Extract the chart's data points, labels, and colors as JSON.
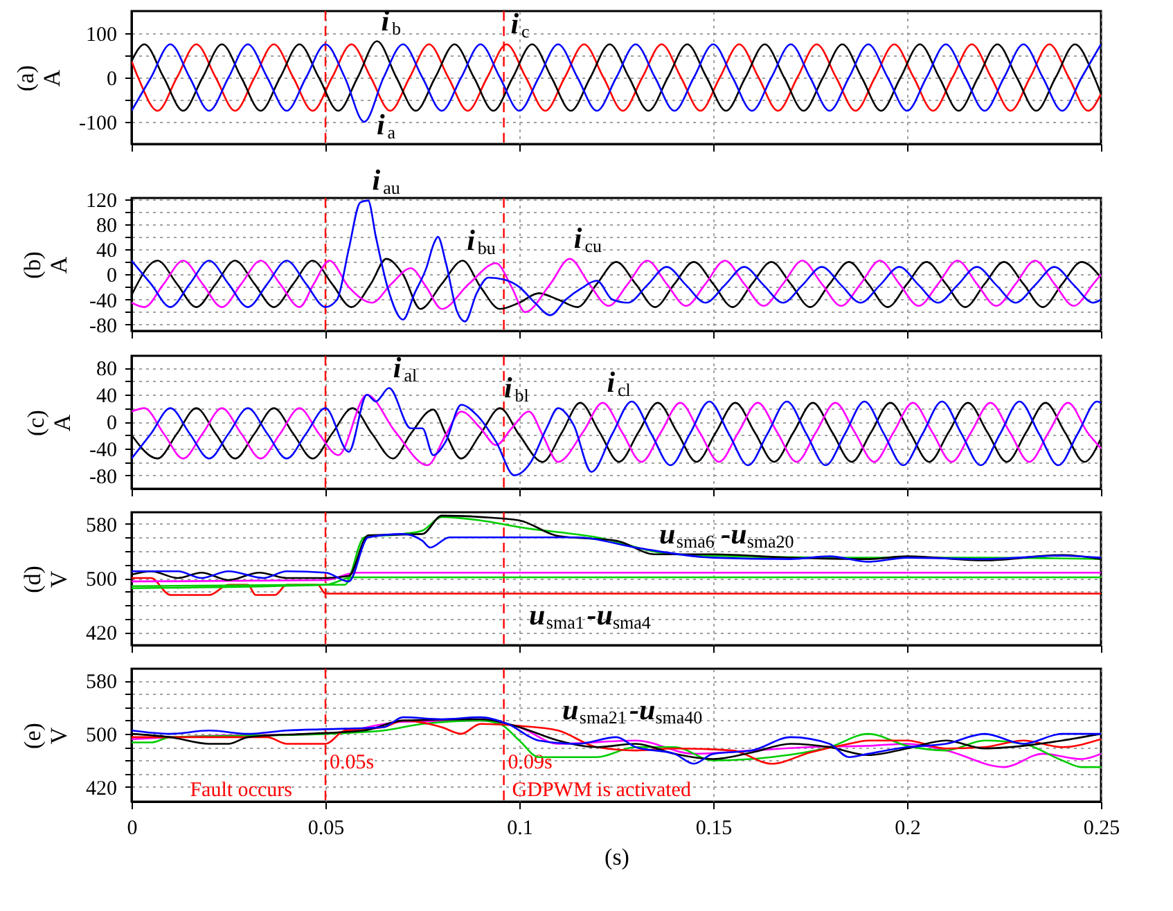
{
  "chart_data": [
    {
      "type": "line",
      "ylabel": "(a)\nA",
      "xlim": [
        0,
        0.25
      ],
      "xticks": [
        0,
        0.05,
        0.1,
        0.15,
        0.2,
        0.25
      ],
      "ylim": [
        -150,
        150
      ],
      "yticks": [
        -100,
        {
          "value": -50,
          "label": null
        },
        0,
        {
          "value": 50,
          "label": null
        },
        100
      ],
      "grid": true,
      "tick_labels": "y",
      "series": [
        {
          "color": "#ff0000",
          "x": [
            0,
            0.0017,
            0.0067,
            0.0117,
            0.0167,
            0.0217,
            0.0267,
            0.0317,
            0.0367,
            0.0417,
            0.0467,
            0.0517,
            0.0567,
            0.0617,
            0.0667,
            0.0717,
            0.0767,
            0.0817,
            0.0867,
            0.0917,
            0.0967,
            0.1017,
            0.1067,
            0.1117,
            0.1167,
            0.1217,
            0.1267,
            0.1317,
            0.1367,
            0.1417,
            0.1467,
            0.1517,
            0.1567,
            0.1617,
            0.1667,
            0.1717,
            0.1767,
            0.1817,
            0.1867,
            0.1917,
            0.1967,
            0.2017,
            0.2067,
            0.2117,
            0.2167,
            0.2217,
            0.2267,
            0.2317,
            0.2367,
            0.2417,
            0.2467,
            0.25
          ],
          "values": [
            37,
            0,
            -75,
            0,
            75,
            0,
            -75,
            0,
            75,
            0,
            -75,
            0,
            75,
            0,
            -75,
            0,
            75,
            0,
            -75,
            0,
            75,
            0,
            -75,
            0,
            75,
            0,
            -75,
            0,
            75,
            0,
            -75,
            0,
            75,
            0,
            -75,
            0,
            75,
            0,
            -75,
            0,
            75,
            0,
            -75,
            0,
            75,
            0,
            -75,
            0,
            75,
            0,
            -75,
            -37
          ]
        },
        {
          "color": "#000000",
          "x": [
            0,
            0.0033,
            0.0083,
            0.0133,
            0.0183,
            0.0233,
            0.0283,
            0.0333,
            0.0383,
            0.0433,
            0.0483,
            0.0533,
            0.0583,
            0.0633,
            0.0683,
            0.0733,
            0.0783,
            0.0833,
            0.0883,
            0.0933,
            0.0983,
            0.1033,
            0.1083,
            0.1133,
            0.1183,
            0.1233,
            0.1283,
            0.1333,
            0.1383,
            0.1433,
            0.1483,
            0.1533,
            0.1583,
            0.1633,
            0.1683,
            0.1733,
            0.1783,
            0.1833,
            0.1883,
            0.1933,
            0.1983,
            0.2033,
            0.2083,
            0.2133,
            0.2183,
            0.2233,
            0.2283,
            0.2333,
            0.2383,
            0.2433,
            0.2483,
            0.25
          ],
          "values": [
            37,
            75,
            0,
            -75,
            0,
            75,
            0,
            -75,
            0,
            75,
            0,
            -75,
            0,
            82,
            0,
            -75,
            0,
            75,
            0,
            -75,
            0,
            75,
            0,
            -75,
            0,
            75,
            0,
            -75,
            0,
            75,
            0,
            -75,
            0,
            75,
            0,
            -75,
            0,
            75,
            0,
            -75,
            0,
            75,
            0,
            -75,
            0,
            75,
            0,
            -75,
            0,
            75,
            0,
            -37
          ]
        },
        {
          "color": "#0000ff",
          "x": [
            0,
            0.005,
            0.01,
            0.015,
            0.02,
            0.025,
            0.03,
            0.035,
            0.04,
            0.045,
            0.05,
            0.055,
            0.06,
            0.065,
            0.07,
            0.075,
            0.08,
            0.085,
            0.09,
            0.095,
            0.1,
            0.105,
            0.11,
            0.115,
            0.12,
            0.125,
            0.13,
            0.135,
            0.14,
            0.145,
            0.15,
            0.155,
            0.16,
            0.165,
            0.17,
            0.175,
            0.18,
            0.185,
            0.19,
            0.195,
            0.2,
            0.205,
            0.21,
            0.215,
            0.22,
            0.225,
            0.23,
            0.235,
            0.24,
            0.245,
            0.25
          ],
          "values": [
            -75,
            0,
            75,
            0,
            -75,
            0,
            75,
            0,
            -75,
            0,
            75,
            0,
            -100,
            0,
            75,
            0,
            -75,
            0,
            75,
            0,
            -75,
            0,
            75,
            0,
            -75,
            0,
            75,
            0,
            -75,
            0,
            75,
            0,
            -75,
            0,
            75,
            0,
            -75,
            0,
            75,
            0,
            -75,
            0,
            75,
            0,
            -75,
            0,
            75,
            0,
            -75,
            0,
            75
          ]
        }
      ],
      "annotations": [
        {
          "text": "i$_{b}$",
          "x": 0.0633,
          "y": 82
        },
        {
          "text": "i$_{c}$",
          "x": 0.0967,
          "y": 75
        },
        {
          "text": "i$_{a}$",
          "x": 0.06,
          "y": -100
        }
      ],
      "ref_lines": [
        {
          "axis": "x",
          "value": 0.05,
          "color": "#ff0000",
          "line_style": "dashed"
        },
        {
          "axis": "x",
          "value": 0.096,
          "color": "#ff0000",
          "line_style": "dashed"
        }
      ]
    },
    {
      "type": "line",
      "ylabel": "(b)\nA",
      "xlim": [
        0,
        0.25
      ],
      "xticks": [
        0,
        0.05,
        0.1,
        0.15,
        0.2,
        0.25
      ],
      "ylim": [
        -90,
        122
      ],
      "yticks": [
        -80,
        {
          "value": -60,
          "label": null
        },
        -40,
        {
          "value": -20,
          "label": null
        },
        0,
        {
          "value": 20,
          "label": null
        },
        40,
        {
          "value": 60,
          "label": null
        },
        80,
        {
          "value": 100,
          "label": null
        },
        120
      ],
      "grid": true,
      "tick_labels": "y",
      "series": [
        {
          "color": "#000000",
          "x": [
            0,
            0.0067,
            0.0117,
            0.0167,
            0.0217,
            0.0267,
            0.0317,
            0.0367,
            0.0417,
            0.0467,
            0.0517,
            0.0567,
            0.0617,
            0.0657,
            0.07,
            0.0745,
            0.08,
            0.0854,
            0.09,
            0.095,
            0.1,
            0.105,
            0.11,
            0.115,
            0.12,
            0.125,
            0.13,
            0.135,
            0.14,
            0.145,
            0.15,
            0.155,
            0.16,
            0.165,
            0.17,
            0.175,
            0.18,
            0.185,
            0.19,
            0.195,
            0.2,
            0.205,
            0.21,
            0.215,
            0.22,
            0.225,
            0.23,
            0.235,
            0.24,
            0.245,
            0.25
          ],
          "values": [
            -33,
            22,
            -15,
            -52,
            -15,
            22,
            -15,
            -52,
            -15,
            22,
            -15,
            -52,
            -15,
            25,
            0,
            -55,
            -15,
            22,
            -20,
            -55,
            -45,
            -30,
            -40,
            -52,
            -15,
            20,
            -15,
            -52,
            -15,
            20,
            -15,
            -52,
            -15,
            20,
            -15,
            -52,
            -15,
            20,
            -15,
            -52,
            -15,
            20,
            -15,
            -52,
            -15,
            20,
            -15,
            -52,
            -15,
            20,
            -5
          ]
        },
        {
          "color": "#ff00ff",
          "x": [
            0,
            0.0033,
            0.0083,
            0.0133,
            0.0183,
            0.0233,
            0.0283,
            0.0333,
            0.0383,
            0.0433,
            0.047,
            0.051,
            0.056,
            0.062,
            0.067,
            0.072,
            0.076,
            0.08,
            0.087,
            0.094,
            0.098,
            0.1015,
            0.108,
            0.113,
            0.118,
            0.123,
            0.128,
            0.133,
            0.138,
            0.143,
            0.148,
            0.153,
            0.158,
            0.163,
            0.168,
            0.173,
            0.178,
            0.183,
            0.188,
            0.193,
            0.198,
            0.203,
            0.208,
            0.213,
            0.218,
            0.223,
            0.228,
            0.233,
            0.238,
            0.243,
            0.248,
            0.25
          ],
          "values": [
            -45,
            -52,
            -15,
            22,
            -15,
            -52,
            -15,
            22,
            -15,
            -52,
            -15,
            22,
            -20,
            -45,
            -15,
            10,
            -20,
            -55,
            -15,
            18,
            -20,
            -60,
            -15,
            25,
            -15,
            -50,
            -15,
            22,
            -15,
            -50,
            -15,
            22,
            -15,
            -50,
            -15,
            22,
            -15,
            -50,
            -15,
            22,
            -15,
            -50,
            -15,
            22,
            -15,
            -50,
            -15,
            22,
            -15,
            -50,
            -15,
            0
          ]
        },
        {
          "color": "#0000ff",
          "x": [
            0,
            0.005,
            0.01,
            0.015,
            0.02,
            0.025,
            0.03,
            0.035,
            0.04,
            0.045,
            0.05,
            0.053,
            0.056,
            0.059,
            0.061,
            0.063,
            0.066,
            0.07,
            0.073,
            0.076,
            0.078,
            0.079,
            0.081,
            0.084,
            0.086,
            0.089,
            0.092,
            0.096,
            0.1,
            0.104,
            0.108,
            0.112,
            0.116,
            0.12,
            0.124,
            0.128,
            0.133,
            0.138,
            0.143,
            0.148,
            0.153,
            0.158,
            0.163,
            0.168,
            0.173,
            0.178,
            0.183,
            0.188,
            0.193,
            0.198,
            0.203,
            0.208,
            0.213,
            0.218,
            0.223,
            0.228,
            0.233,
            0.238,
            0.243,
            0.248,
            0.25
          ],
          "values": [
            22,
            -15,
            -52,
            -15,
            22,
            -15,
            -52,
            -15,
            22,
            -15,
            -52,
            -40,
            40,
            115,
            118,
            60,
            -20,
            -72,
            -30,
            10,
            50,
            60,
            20,
            -60,
            -75,
            -30,
            -5,
            -8,
            -20,
            -45,
            -65,
            -40,
            -22,
            -10,
            -40,
            -45,
            -17,
            12,
            -17,
            -45,
            -17,
            12,
            -17,
            -45,
            -17,
            12,
            -17,
            -45,
            -17,
            12,
            -17,
            -45,
            -17,
            12,
            -17,
            -45,
            -17,
            12,
            -17,
            -45,
            -40
          ]
        }
      ],
      "annotations": [
        {
          "text": "i$_{au}$",
          "x": 0.061,
          "y": 118
        },
        {
          "text": "i$_{bu}$",
          "x": 0.0854,
          "y": 22
        },
        {
          "text": "i$_{cu}$",
          "x": 0.113,
          "y": 25
        }
      ],
      "ref_lines": [
        {
          "axis": "x",
          "value": 0.05,
          "color": "#ff0000",
          "line_style": "dashed"
        },
        {
          "axis": "x",
          "value": 0.096,
          "color": "#ff0000",
          "line_style": "dashed"
        }
      ]
    },
    {
      "type": "line",
      "ylabel": "(c)\nA",
      "xlim": [
        0,
        0.25
      ],
      "xticks": [
        0,
        0.05,
        0.1,
        0.15,
        0.2,
        0.25
      ],
      "ylim": [
        -100,
        98
      ],
      "yticks": [
        -80,
        {
          "value": -60,
          "label": null
        },
        -40,
        {
          "value": -20,
          "label": null
        },
        0,
        {
          "value": 20,
          "label": null
        },
        40,
        {
          "value": 60,
          "label": null
        },
        80
      ],
      "grid": true,
      "tick_labels": "y",
      "series": [
        {
          "color": "#000000",
          "x": [
            0,
            0.0067,
            0.0117,
            0.0167,
            0.0217,
            0.0267,
            0.0317,
            0.0367,
            0.0417,
            0.0467,
            0.0517,
            0.057,
            0.062,
            0.0674,
            0.072,
            0.0778,
            0.081,
            0.085,
            0.09,
            0.095,
            0.1,
            0.106,
            0.111,
            0.1157,
            0.1207,
            0.1257,
            0.1307,
            0.1357,
            0.1407,
            0.1457,
            0.1507,
            0.1557,
            0.1607,
            0.1657,
            0.1707,
            0.1757,
            0.1807,
            0.1857,
            0.1907,
            0.1957,
            0.2007,
            0.2057,
            0.2107,
            0.2157,
            0.2207,
            0.2257,
            0.2307,
            0.2357,
            0.2407,
            0.2457,
            0.25
          ],
          "values": [
            -20,
            -55,
            -18,
            20,
            -18,
            -55,
            -18,
            20,
            -18,
            -55,
            -18,
            20,
            -18,
            -55,
            -18,
            18,
            -18,
            -55,
            -18,
            20,
            -20,
            -60,
            -16,
            28,
            -16,
            -60,
            -16,
            28,
            -16,
            -60,
            -16,
            28,
            -16,
            -60,
            -16,
            28,
            -16,
            -60,
            -16,
            28,
            -16,
            -60,
            -16,
            28,
            -16,
            -60,
            -16,
            28,
            -16,
            -60,
            -25
          ]
        },
        {
          "color": "#ff00ff",
          "x": [
            0,
            0.0033,
            0.0083,
            0.0133,
            0.0183,
            0.0233,
            0.0283,
            0.0333,
            0.0383,
            0.0433,
            0.0483,
            0.0533,
            0.0607,
            0.068,
            0.0763,
            0.081,
            0.085,
            0.09,
            0.094,
            0.098,
            0.1025,
            0.106,
            0.11,
            0.1165,
            0.1215,
            0.1265,
            0.1315,
            0.1365,
            0.1415,
            0.1465,
            0.1515,
            0.1565,
            0.1615,
            0.1665,
            0.1715,
            0.1765,
            0.1815,
            0.1865,
            0.1915,
            0.1965,
            0.2015,
            0.2065,
            0.2115,
            0.2165,
            0.2215,
            0.2265,
            0.2315,
            0.2365,
            0.2415,
            0.2465,
            0.25
          ],
          "values": [
            15,
            20,
            -18,
            -55,
            -18,
            20,
            -18,
            -55,
            -18,
            20,
            -18,
            -50,
            40,
            -15,
            -65,
            -20,
            15,
            -10,
            -35,
            -10,
            15,
            -20,
            -60,
            -15,
            28,
            -16,
            -60,
            -16,
            28,
            -16,
            -60,
            -16,
            28,
            -16,
            -60,
            -16,
            28,
            -16,
            -60,
            -16,
            28,
            -16,
            -60,
            -16,
            28,
            -16,
            -60,
            -16,
            28,
            -16,
            -40
          ]
        },
        {
          "color": "#0000ff",
          "x": [
            0,
            0.005,
            0.01,
            0.015,
            0.02,
            0.025,
            0.03,
            0.035,
            0.04,
            0.045,
            0.05,
            0.056,
            0.0607,
            0.063,
            0.0664,
            0.072,
            0.075,
            0.0778,
            0.081,
            0.085,
            0.089,
            0.094,
            0.0987,
            0.103,
            0.107,
            0.11,
            0.114,
            0.1186,
            0.124,
            0.129,
            0.134,
            0.139,
            0.144,
            0.149,
            0.154,
            0.159,
            0.164,
            0.169,
            0.174,
            0.179,
            0.184,
            0.189,
            0.194,
            0.199,
            0.204,
            0.209,
            0.214,
            0.219,
            0.224,
            0.229,
            0.234,
            0.239,
            0.244,
            0.249,
            0.25
          ],
          "values": [
            -55,
            -18,
            20,
            -18,
            -55,
            -18,
            20,
            -18,
            -55,
            -18,
            20,
            -45,
            40,
            30,
            50,
            -10,
            -10,
            -50,
            -30,
            25,
            10,
            -30,
            -80,
            -60,
            -10,
            20,
            -5,
            -75,
            -18,
            30,
            -18,
            -65,
            -18,
            30,
            -18,
            -65,
            -18,
            30,
            -18,
            -65,
            -18,
            30,
            -18,
            -65,
            -18,
            30,
            -18,
            -65,
            -18,
            30,
            -18,
            -65,
            -18,
            30,
            28
          ]
        }
      ],
      "annotations": [
        {
          "text": "i$_{al}$",
          "x": 0.0664,
          "y": 50
        },
        {
          "text": "i$_{bl}$",
          "x": 0.095,
          "y": 20
        },
        {
          "text": "i$_{cl}$",
          "x": 0.1215,
          "y": 28
        }
      ],
      "ref_lines": [
        {
          "axis": "x",
          "value": 0.05,
          "color": "#ff0000",
          "line_style": "dashed"
        },
        {
          "axis": "x",
          "value": 0.096,
          "color": "#ff0000",
          "line_style": "dashed"
        }
      ]
    },
    {
      "type": "line",
      "ylabel": "(d)\nV",
      "xlim": [
        0,
        0.25
      ],
      "xticks": [
        0,
        0.05,
        0.1,
        0.15,
        0.2,
        0.25
      ],
      "ylim": [
        401,
        597
      ],
      "yticks": [
        420,
        {
          "value": 440,
          "label": null
        },
        {
          "value": 460,
          "label": null
        },
        {
          "value": 480,
          "label": null
        },
        500,
        {
          "value": 520,
          "label": null
        },
        {
          "value": 540,
          "label": null
        },
        {
          "value": 560,
          "label": null
        },
        580
      ],
      "grid": true,
      "tick_labels": "y",
      "series": [
        {
          "color": "#ff0000",
          "x": [
            0,
            0.005,
            0.01,
            0.02,
            0.025,
            0.03,
            0.032,
            0.037,
            0.04,
            0.048,
            0.05,
            0.25
          ],
          "values": [
            500,
            500,
            475,
            475,
            490,
            490,
            475,
            475,
            490,
            490,
            477,
            477
          ]
        },
        {
          "color": "#00cc00",
          "x": [
            0,
            0.05,
            0.057,
            0.25
          ],
          "values": [
            485,
            490,
            501,
            501
          ]
        },
        {
          "color": "#ff00ff",
          "x": [
            0,
            0.05,
            0.058,
            0.25
          ],
          "values": [
            495,
            497,
            508,
            508
          ]
        },
        {
          "color": "#00cc00",
          "x": [
            0,
            0.05,
            0.055,
            0.06,
            0.07,
            0.075,
            0.08,
            0.09,
            0.1,
            0.12,
            0.14,
            0.18,
            0.22,
            0.25
          ],
          "values": [
            488,
            490,
            490,
            560,
            565,
            570,
            590,
            585,
            575,
            560,
            535,
            530,
            530,
            528
          ]
        },
        {
          "color": "#000000",
          "x": [
            0,
            0.005,
            0.012,
            0.018,
            0.025,
            0.033,
            0.04,
            0.05,
            0.056,
            0.061,
            0.075,
            0.08,
            0.09,
            0.1,
            0.11,
            0.125,
            0.135,
            0.15,
            0.17,
            0.19,
            0.2,
            0.22,
            0.24,
            0.25
          ],
          "values": [
            505,
            510,
            500,
            508,
            497,
            508,
            500,
            500,
            503,
            563,
            565,
            592,
            590,
            585,
            562,
            555,
            535,
            535,
            530,
            528,
            532,
            526,
            534,
            528
          ]
        },
        {
          "color": "#0000ff",
          "x": [
            0,
            0.012,
            0.018,
            0.025,
            0.034,
            0.04,
            0.05,
            0.056,
            0.061,
            0.07,
            0.075,
            0.077,
            0.082,
            0.1,
            0.115,
            0.13,
            0.15,
            0.17,
            0.18,
            0.19,
            0.2,
            0.22,
            0.24,
            0.25
          ],
          "values": [
            510,
            510,
            500,
            510,
            500,
            510,
            508,
            495,
            560,
            565,
            555,
            545,
            560,
            560,
            560,
            545,
            530,
            528,
            532,
            524,
            530,
            528,
            533,
            530
          ]
        }
      ],
      "annotations": [
        {
          "text": "u$_{sma6}$-u$_{sma20}$",
          "x": 0.135,
          "y": 535
        },
        {
          "text": "u$_{sma1}$-u$_{sma4}$",
          "x": 0.1,
          "y": 477
        }
      ],
      "ref_lines": [
        {
          "axis": "x",
          "value": 0.05,
          "color": "#ff0000",
          "line_style": "dashed"
        },
        {
          "axis": "x",
          "value": 0.096,
          "color": "#ff0000",
          "line_style": "dashed"
        }
      ]
    },
    {
      "type": "line",
      "ylabel": "(e)\nV",
      "xlabel": "(s)",
      "xlim": [
        0,
        0.25
      ],
      "xticks": [
        0,
        0.05,
        0.1,
        0.15,
        0.2,
        0.25
      ],
      "ylim": [
        398,
        598
      ],
      "yticks": [
        420,
        {
          "value": 440,
          "label": null
        },
        {
          "value": 460,
          "label": null
        },
        {
          "value": 480,
          "label": null
        },
        500,
        {
          "value": 520,
          "label": null
        },
        {
          "value": 540,
          "label": null
        },
        {
          "value": 560,
          "label": null
        },
        580
      ],
      "grid": true,
      "series": [
        {
          "color": "#ff00ff",
          "x": [
            0,
            0.02,
            0.05,
            0.07,
            0.09,
            0.1,
            0.11,
            0.13,
            0.145,
            0.16,
            0.175,
            0.19,
            0.2,
            0.21,
            0.225,
            0.235,
            0.245,
            0.25
          ],
          "values": [
            492,
            497,
            500,
            518,
            520,
            510,
            485,
            490,
            470,
            475,
            480,
            482,
            485,
            475,
            450,
            470,
            462,
            470
          ]
        },
        {
          "color": "#00cc00",
          "x": [
            0,
            0.005,
            0.01,
            0.05,
            0.065,
            0.075,
            0.09,
            0.095,
            0.1,
            0.105,
            0.12,
            0.13,
            0.14,
            0.15,
            0.165,
            0.18,
            0.19,
            0.2,
            0.21,
            0.22,
            0.23,
            0.24,
            0.245,
            0.25
          ],
          "values": [
            487,
            487,
            495,
            500,
            505,
            515,
            520,
            515,
            490,
            465,
            465,
            480,
            480,
            460,
            465,
            480,
            500,
            482,
            475,
            490,
            485,
            460,
            450,
            450
          ]
        },
        {
          "color": "#ff0000",
          "x": [
            0,
            0.035,
            0.04,
            0.05,
            0.055,
            0.065,
            0.07,
            0.08,
            0.085,
            0.09,
            0.1,
            0.11,
            0.12,
            0.13,
            0.14,
            0.155,
            0.165,
            0.175,
            0.185,
            0.19,
            0.2,
            0.21,
            0.22,
            0.23,
            0.24,
            0.25
          ],
          "values": [
            495,
            495,
            485,
            485,
            505,
            510,
            520,
            510,
            500,
            515,
            512,
            505,
            480,
            475,
            478,
            475,
            455,
            472,
            485,
            490,
            490,
            478,
            480,
            490,
            480,
            492
          ]
        },
        {
          "color": "#000000",
          "x": [
            0,
            0.01,
            0.02,
            0.025,
            0.03,
            0.045,
            0.06,
            0.07,
            0.09,
            0.1,
            0.11,
            0.12,
            0.13,
            0.14,
            0.15,
            0.16,
            0.17,
            0.18,
            0.19,
            0.2,
            0.21,
            0.22,
            0.23,
            0.24,
            0.25
          ],
          "values": [
            500,
            495,
            485,
            485,
            495,
            500,
            505,
            520,
            522,
            510,
            490,
            480,
            485,
            470,
            462,
            472,
            485,
            480,
            468,
            478,
            490,
            478,
            482,
            490,
            500
          ]
        },
        {
          "color": "#0000ff",
          "x": [
            0,
            0.01,
            0.02,
            0.03,
            0.04,
            0.05,
            0.065,
            0.07,
            0.08,
            0.09,
            0.097,
            0.105,
            0.115,
            0.125,
            0.13,
            0.14,
            0.145,
            0.15,
            0.16,
            0.17,
            0.18,
            0.185,
            0.19,
            0.2,
            0.21,
            0.22,
            0.23,
            0.24,
            0.25
          ],
          "values": [
            505,
            500,
            505,
            500,
            505,
            507,
            510,
            525,
            522,
            525,
            515,
            490,
            485,
            495,
            480,
            470,
            455,
            470,
            475,
            495,
            485,
            465,
            470,
            480,
            485,
            500,
            485,
            500,
            500
          ]
        }
      ],
      "annotations": [
        {
          "text": "u$_{sma21}$-u$_{sma40}$",
          "x": 0.11,
          "y": 505
        },
        {
          "text": "Fault occurs",
          "x": 0.05,
          "y": 450
        },
        {
          "text": "GDPWM is activated",
          "x": 0.096,
          "y": 450
        }
      ],
      "ref_lines": [
        {
          "axis": "x",
          "value": 0.05,
          "label": "0.05s",
          "color": "#ff0000",
          "line_style": "dashed"
        },
        {
          "axis": "x",
          "value": 0.096,
          "label": "0.09s",
          "color": "#ff0000",
          "line_style": "dashed"
        }
      ]
    }
  ]
}
